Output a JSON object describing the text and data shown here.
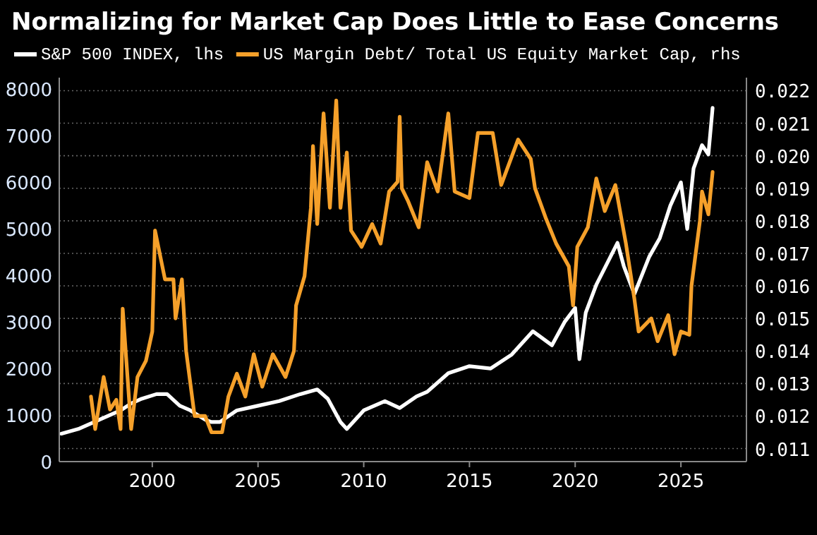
{
  "chart_data": {
    "type": "line",
    "title": "Normalizing for Market Cap Does Little to Ease Concerns",
    "legend": "top left",
    "grid": "y",
    "line_style": "solid",
    "marker": "none",
    "xlim": [
      1995.6,
      2028.1
    ],
    "xticks": [
      2000,
      2005,
      2010,
      2015,
      2020,
      2025
    ],
    "ylim": [
      0,
      8250
    ],
    "yticks": [
      0,
      1000,
      2000,
      3000,
      4000,
      5000,
      6000,
      7000,
      8000
    ],
    "y2lim": [
      0.0106,
      0.0224
    ],
    "y2ticks": [
      {
        "value": 0.011,
        "label": "0.011"
      },
      {
        "value": 0.012,
        "label": "0.012"
      },
      {
        "value": 0.013,
        "label": "0.013"
      },
      {
        "value": 0.014,
        "label": "0.014"
      },
      {
        "value": 0.015,
        "label": "0.015"
      },
      {
        "value": 0.016,
        "label": "0.016"
      },
      {
        "value": 0.017,
        "label": "0.017"
      },
      {
        "value": 0.018,
        "label": "0.018"
      },
      {
        "value": 0.019,
        "label": "0.019"
      },
      {
        "value": 0.02,
        "label": "0.020"
      },
      {
        "value": 0.021,
        "label": "0.021"
      },
      {
        "value": 0.022,
        "label": "0.022"
      }
    ],
    "series": [
      {
        "name": "S&P 500 INDEX, lhs",
        "color": "#ffffff",
        "x": [
          1995.7,
          1996.5,
          1997.5,
          1998.5,
          1999,
          1999.5,
          2000.2,
          2000.7,
          2001.3,
          2001.8,
          2002.5,
          2002.8,
          2003.2,
          2004,
          2005,
          2006,
          2007,
          2007.8,
          2008.3,
          2008.9,
          2009.2,
          2010,
          2011,
          2011.7,
          2012.5,
          2013,
          2014,
          2015,
          2016,
          2017,
          2018,
          2018.9,
          2019.5,
          2020,
          2020.2,
          2020.5,
          2021,
          2022,
          2022.3,
          2022.8,
          2023.5,
          2024,
          2024.5,
          2025,
          2025.3,
          2025.6,
          2026,
          2026.3,
          2026.5
        ],
        "values": [
          600,
          700,
          900,
          1100,
          1250,
          1350,
          1450,
          1450,
          1200,
          1100,
          900,
          850,
          850,
          1100,
          1200,
          1300,
          1450,
          1550,
          1350,
          850,
          700,
          1100,
          1300,
          1150,
          1400,
          1500,
          1900,
          2050,
          2000,
          2300,
          2800,
          2500,
          3000,
          3300,
          2200,
          3200,
          3800,
          4700,
          4200,
          3600,
          4400,
          4800,
          5500,
          6000,
          5000,
          6300,
          6800,
          6600,
          7600
        ]
      },
      {
        "name": "US Margin Debt/ Total US Equity Market Cap, rhs",
        "color": "#f5a02a",
        "axis": "y2",
        "x": [
          1997.1,
          1997.3,
          1997.7,
          1998,
          1998.3,
          1998.5,
          1998.6,
          1999,
          1999.3,
          1999.7,
          2000,
          2000.13,
          2000.6,
          2001,
          2001.1,
          2001.4,
          2001.6,
          2002,
          2002.5,
          2002.8,
          2003.3,
          2003.6,
          2004,
          2004.4,
          2004.8,
          2005.2,
          2005.7,
          2006.3,
          2006.7,
          2006.8,
          2007.2,
          2007.5,
          2007.6,
          2007.8,
          2008.1,
          2008.4,
          2008.7,
          2008.9,
          2009.2,
          2009.4,
          2009.9,
          2010.4,
          2010.8,
          2011.2,
          2011.6,
          2011.7,
          2011.8,
          2012.1,
          2012.6,
          2013,
          2013.5,
          2014,
          2014.3,
          2015,
          2015.4,
          2016.1,
          2016.5,
          2017.3,
          2017.9,
          2018.1,
          2018.6,
          2019.1,
          2019.7,
          2019.9,
          2020.1,
          2020.6,
          2021,
          2021.4,
          2021.9,
          2022.4,
          2022.8,
          2023,
          2023.6,
          2023.9,
          2024.4,
          2024.7,
          2025,
          2025.4,
          2025.5,
          2025.9,
          2026,
          2026.3,
          2026.5
        ],
        "values": [
          0.0126,
          0.0116,
          0.0132,
          0.0122,
          0.0125,
          0.0116,
          0.0153,
          0.0116,
          0.0132,
          0.0137,
          0.0146,
          0.0177,
          0.0162,
          0.0162,
          0.015,
          0.0162,
          0.014,
          0.012,
          0.012,
          0.0115,
          0.0115,
          0.0126,
          0.0133,
          0.0126,
          0.0139,
          0.0129,
          0.0139,
          0.0132,
          0.014,
          0.0154,
          0.0163,
          0.0184,
          0.0203,
          0.0179,
          0.0213,
          0.0184,
          0.0217,
          0.0184,
          0.0201,
          0.0177,
          0.0172,
          0.0179,
          0.0173,
          0.0189,
          0.0192,
          0.0212,
          0.019,
          0.0186,
          0.0178,
          0.0198,
          0.0189,
          0.0213,
          0.0189,
          0.0187,
          0.0207,
          0.0207,
          0.0191,
          0.0205,
          0.0199,
          0.019,
          0.0181,
          0.0173,
          0.0166,
          0.0154,
          0.0172,
          0.0178,
          0.0193,
          0.0183,
          0.0191,
          0.0173,
          0.0156,
          0.0146,
          0.015,
          0.0143,
          0.0151,
          0.0139,
          0.0146,
          0.0145,
          0.016,
          0.018,
          0.0189,
          0.0182,
          0.0195
        ]
      }
    ]
  }
}
